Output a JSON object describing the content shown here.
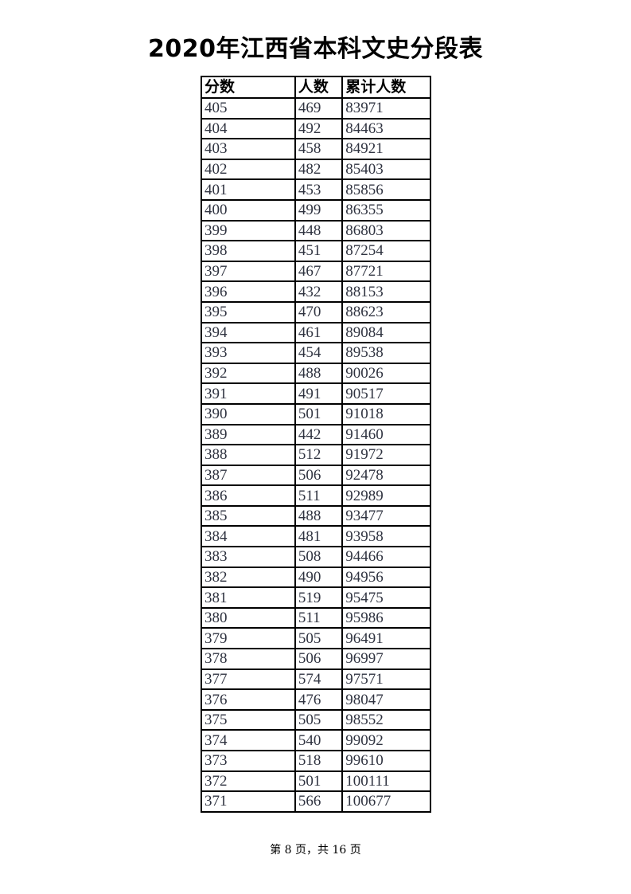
{
  "title": "2020年江西省本科文史分段表",
  "table": {
    "headers": [
      "分数",
      "人数",
      "累计人数"
    ],
    "rows": [
      [
        "405",
        "469",
        "83971"
      ],
      [
        "404",
        "492",
        "84463"
      ],
      [
        "403",
        "458",
        "84921"
      ],
      [
        "402",
        "482",
        "85403"
      ],
      [
        "401",
        "453",
        "85856"
      ],
      [
        "400",
        "499",
        "86355"
      ],
      [
        "399",
        "448",
        "86803"
      ],
      [
        "398",
        "451",
        "87254"
      ],
      [
        "397",
        "467",
        "87721"
      ],
      [
        "396",
        "432",
        "88153"
      ],
      [
        "395",
        "470",
        "88623"
      ],
      [
        "394",
        "461",
        "89084"
      ],
      [
        "393",
        "454",
        "89538"
      ],
      [
        "392",
        "488",
        "90026"
      ],
      [
        "391",
        "491",
        "90517"
      ],
      [
        "390",
        "501",
        "91018"
      ],
      [
        "389",
        "442",
        "91460"
      ],
      [
        "388",
        "512",
        "91972"
      ],
      [
        "387",
        "506",
        "92478"
      ],
      [
        "386",
        "511",
        "92989"
      ],
      [
        "385",
        "488",
        "93477"
      ],
      [
        "384",
        "481",
        "93958"
      ],
      [
        "383",
        "508",
        "94466"
      ],
      [
        "382",
        "490",
        "94956"
      ],
      [
        "381",
        "519",
        "95475"
      ],
      [
        "380",
        "511",
        "95986"
      ],
      [
        "379",
        "505",
        "96491"
      ],
      [
        "378",
        "506",
        "96997"
      ],
      [
        "377",
        "574",
        "97571"
      ],
      [
        "376",
        "476",
        "98047"
      ],
      [
        "375",
        "505",
        "98552"
      ],
      [
        "374",
        "540",
        "99092"
      ],
      [
        "373",
        "518",
        "99610"
      ],
      [
        "372",
        "501",
        "100111"
      ],
      [
        "371",
        "566",
        "100677"
      ]
    ]
  },
  "footer": "第 8 页，共 16 页"
}
